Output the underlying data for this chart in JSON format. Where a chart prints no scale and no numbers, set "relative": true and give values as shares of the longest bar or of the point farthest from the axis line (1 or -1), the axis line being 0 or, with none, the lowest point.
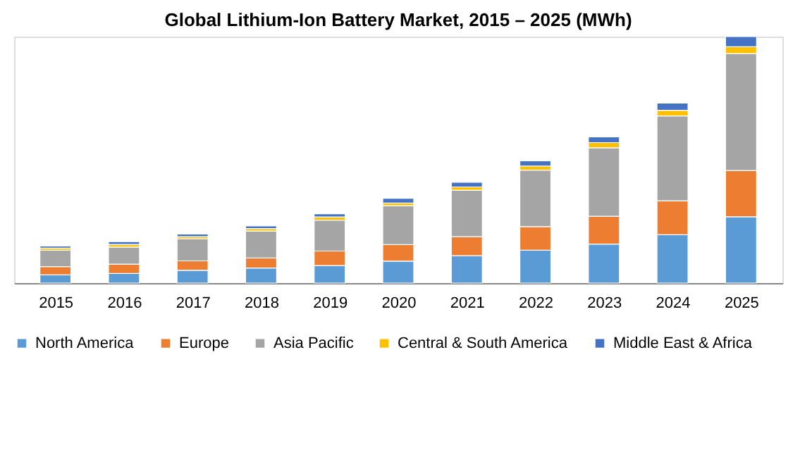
{
  "chart_data": {
    "type": "bar",
    "title": "Global Lithium-Ion Battery Market, 2015 – 2025 (MWh)",
    "stacked": true,
    "relative": true,
    "legend": "bottom",
    "grid": false,
    "categories": [
      "2015",
      "2016",
      "2017",
      "2018",
      "2019",
      "2020",
      "2021",
      "2022",
      "2023",
      "2024",
      "2025"
    ],
    "series": [
      {
        "name": "North America",
        "color": "#5b9bd5",
        "values": [
          0.033,
          0.039,
          0.052,
          0.061,
          0.071,
          0.089,
          0.111,
          0.133,
          0.158,
          0.196,
          0.269
        ]
      },
      {
        "name": "Europe",
        "color": "#ed7d31",
        "values": [
          0.034,
          0.038,
          0.038,
          0.041,
          0.059,
          0.067,
          0.077,
          0.096,
          0.113,
          0.138,
          0.188
        ]
      },
      {
        "name": "Asia Pacific",
        "color": "#a5a5a5",
        "values": [
          0.066,
          0.069,
          0.09,
          0.109,
          0.125,
          0.158,
          0.189,
          0.229,
          0.278,
          0.344,
          0.474
        ]
      },
      {
        "name": "Central & South America",
        "color": "#ffc000",
        "values": [
          0.009,
          0.011,
          0.008,
          0.01,
          0.013,
          0.011,
          0.013,
          0.017,
          0.021,
          0.023,
          0.028
        ]
      },
      {
        "name": "Middle East & Africa",
        "color": "#4472c4",
        "values": [
          0.008,
          0.011,
          0.011,
          0.011,
          0.013,
          0.019,
          0.019,
          0.021,
          0.023,
          0.029,
          0.041
        ]
      }
    ]
  }
}
